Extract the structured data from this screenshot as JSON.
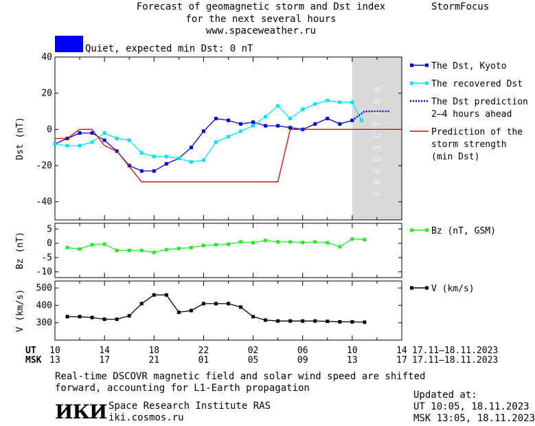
{
  "header": {
    "title_lines": [
      "Forecast of geomagnetic storm and Dst index",
      "for the next several hours",
      "www.spaceweather.ru"
    ],
    "brand": "StormFocus",
    "status_text": "Quiet, expected min Dst: 0 nT",
    "status_color": "#0000ff"
  },
  "chart_data": [
    {
      "type": "line",
      "ylabel": "Dst (nT)",
      "ylim": [
        -50,
        40
      ],
      "yticks": [
        40,
        20,
        0,
        -20,
        -40
      ],
      "x_range_hours": [
        0,
        28
      ],
      "prediction_label": "PREDICTION",
      "prediction_band_hours": [
        24,
        28
      ],
      "series": [
        {
          "name": "The Dst, Kyoto",
          "color": "#0000dd",
          "style": "line-marker",
          "x": [
            0,
            1,
            2,
            3,
            4,
            5,
            6,
            7,
            8,
            9,
            10,
            11,
            12,
            13,
            14,
            15,
            16,
            17,
            18,
            19,
            20,
            21,
            22,
            23,
            24
          ],
          "values": [
            -8,
            -5,
            -2,
            -2,
            -6,
            -12,
            -20,
            -23,
            -23,
            -19,
            -16,
            -10,
            -1,
            6,
            5,
            3,
            4,
            2,
            2,
            1,
            0,
            3,
            6,
            3,
            5
          ]
        },
        {
          "name": "The recovered Dst",
          "color": "#00e5ee",
          "style": "line-marker",
          "x": [
            0,
            1,
            2,
            3,
            4,
            5,
            6,
            7,
            8,
            9,
            10,
            11,
            12,
            13,
            14,
            15,
            16,
            17,
            18,
            19,
            20,
            21,
            22,
            23,
            24,
            24.75
          ],
          "values": [
            -8,
            -9,
            -9,
            -7,
            -2,
            -5,
            -6,
            -13,
            -15,
            -15,
            -16,
            -18,
            -17,
            -7,
            -4,
            -1,
            2,
            7,
            13,
            6,
            11,
            14,
            16,
            15,
            15,
            5
          ]
        },
        {
          "name": "The Dst prediction 2–4 hours ahead",
          "color": "#0000dd",
          "style": "dotted",
          "x": [
            24,
            25,
            27
          ],
          "values": [
            5,
            10,
            10
          ]
        },
        {
          "name": "Prediction of the storm strength (min Dst)",
          "color": "#dd0000",
          "style": "line",
          "x": [
            0,
            1,
            2,
            3,
            4,
            5,
            7,
            18,
            19,
            28
          ],
          "values": [
            -5,
            -5,
            0,
            0,
            -9,
            -12,
            -29,
            -29,
            0,
            0
          ]
        }
      ]
    },
    {
      "type": "line",
      "ylabel": "Bz (nT)",
      "ylim": [
        -12,
        7
      ],
      "yticks": [
        5,
        0,
        -5,
        -10
      ],
      "x_range_hours": [
        0,
        28
      ],
      "series": [
        {
          "name": "Bz (nT, GSM)",
          "color": "#22ee22",
          "style": "line-marker",
          "x": [
            1,
            2,
            3,
            4,
            5,
            6,
            7,
            8,
            9,
            10,
            11,
            12,
            13,
            14,
            15,
            16,
            17,
            18,
            19,
            20,
            21,
            22,
            23,
            24,
            25
          ],
          "values": [
            -1.5,
            -2,
            -0.5,
            -0.3,
            -2.5,
            -2.5,
            -2.5,
            -3.2,
            -2.2,
            -1.8,
            -1.5,
            -0.8,
            -0.5,
            -0.3,
            0.5,
            0.2,
            1,
            0.5,
            0.5,
            0.3,
            0.5,
            0.2,
            -1.2,
            1.5,
            1.3
          ]
        }
      ]
    },
    {
      "type": "line",
      "ylabel": "V (km/s)",
      "ylim": [
        200,
        540
      ],
      "yticks": [
        500,
        400,
        300
      ],
      "x_range_hours": [
        0,
        28
      ],
      "series": [
        {
          "name": "V (km/s)",
          "color": "#000000",
          "style": "line-marker",
          "x": [
            1,
            2,
            3,
            4,
            5,
            6,
            7,
            8,
            9,
            10,
            11,
            12,
            13,
            14,
            15,
            16,
            17,
            18,
            19,
            20,
            21,
            22,
            23,
            24,
            25
          ],
          "values": [
            335,
            335,
            330,
            320,
            320,
            340,
            410,
            460,
            460,
            360,
            370,
            410,
            410,
            410,
            390,
            335,
            315,
            310,
            310,
            310,
            310,
            308,
            305,
            305,
            303
          ]
        }
      ]
    }
  ],
  "time_axis": {
    "ut_label": "UT",
    "msk_label": "MSK",
    "ut_ticks": [
      "10",
      "14",
      "18",
      "22",
      "02",
      "06",
      "10",
      "14"
    ],
    "msk_ticks": [
      "13",
      "17",
      "21",
      "01",
      "05",
      "09",
      "13",
      "17"
    ],
    "date_range": "17.11–18.11.2023"
  },
  "footer": {
    "note_line1": "Real-time DSCOVR magnetic field and solar wind speed are shifted",
    "note_line2": "forward, accounting for L1-Earth propagation",
    "institute": "Space Research Institute RAS",
    "website": "iki.cosmos.ru",
    "logo_text": "ИКИ",
    "updated_label": "Updated at:",
    "updated_ut": "UT  10:05, 18.11.2023",
    "updated_msk": "MSK 13:05, 18.11.2023"
  }
}
